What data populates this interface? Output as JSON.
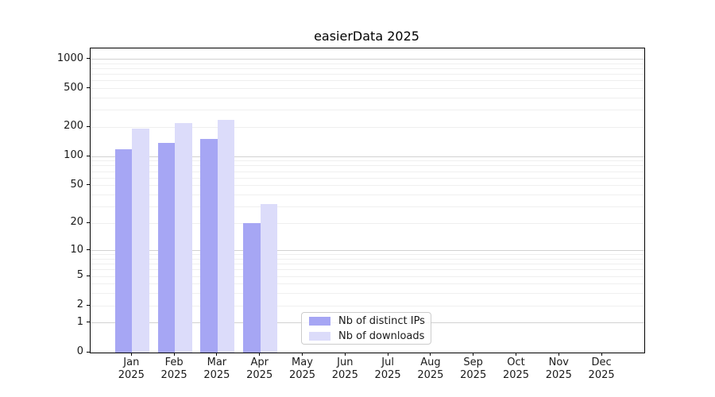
{
  "chart_data": {
    "type": "bar",
    "title": "easierData 2025",
    "categories": [
      "Jan 2025",
      "Feb 2025",
      "Mar 2025",
      "Apr 2025",
      "May 2025",
      "Jun 2025",
      "Jul 2025",
      "Aug 2025",
      "Sep 2025",
      "Oct 2025",
      "Nov 2025",
      "Dec 2025"
    ],
    "series": [
      {
        "name": "Nb of distinct IPs",
        "color": "#a6a6f4",
        "values": [
          120,
          138,
          153,
          20,
          0,
          0,
          0,
          0,
          0,
          0,
          0,
          0
        ]
      },
      {
        "name": "Nb of downloads",
        "color": "#dcdcfa",
        "values": [
          194,
          222,
          240,
          32,
          0,
          0,
          0,
          0,
          0,
          0,
          0,
          0
        ]
      }
    ],
    "yscale": "log10(1+value)",
    "ylim": [
      0,
      1290
    ],
    "yticks": [
      0,
      1,
      2,
      5,
      10,
      20,
      50,
      100,
      200,
      500,
      1000
    ],
    "major_gridlines": [
      1,
      10,
      100,
      1000
    ],
    "minor_gridlines": [
      2,
      3,
      4,
      5,
      6,
      7,
      8,
      9,
      20,
      30,
      40,
      50,
      60,
      70,
      80,
      90,
      200,
      300,
      400,
      500,
      600,
      700,
      800,
      900
    ],
    "legend": {
      "position": "lower center"
    },
    "colors": {
      "grid_major": "#d2d2d2",
      "grid_minor": "#efefef",
      "axis": "#000000",
      "text": "#1a1a1a",
      "background": "#ffffff"
    }
  }
}
